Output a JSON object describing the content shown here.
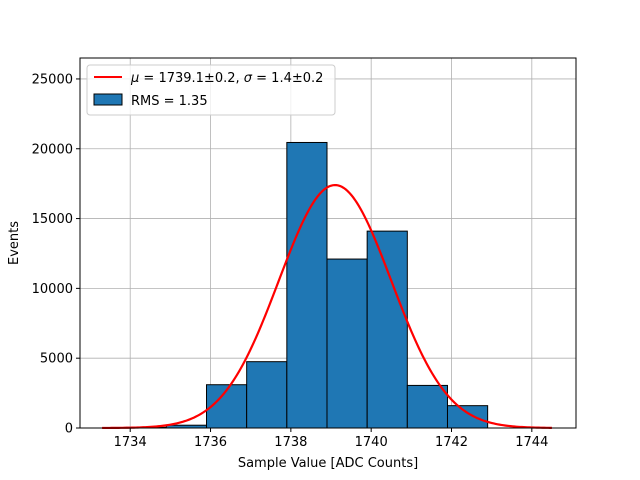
{
  "chart_data": {
    "type": "bar",
    "xlabel": "Sample Value [ADC Counts]",
    "ylabel": "Events",
    "xlim": [
      1732.75,
      1745.1
    ],
    "ylim": [
      0,
      26500
    ],
    "grid": true,
    "legend_position": "upper-left",
    "xticks": [
      1734,
      1736,
      1738,
      1740,
      1742,
      1744
    ],
    "yticks": [
      0,
      5000,
      10000,
      15000,
      20000,
      25000
    ],
    "histogram": {
      "name": "RMS = 1.35",
      "color": "#1f77b4",
      "edgecolor": "#000000",
      "bins": [
        {
          "x0": 1733.9,
          "x1": 1734.9,
          "value": 50
        },
        {
          "x0": 1734.9,
          "x1": 1735.9,
          "value": 200
        },
        {
          "x0": 1735.9,
          "x1": 1736.9,
          "value": 3100
        },
        {
          "x0": 1736.9,
          "x1": 1737.9,
          "value": 4750
        },
        {
          "x0": 1737.9,
          "x1": 1738.9,
          "value": 20450
        },
        {
          "x0": 1738.9,
          "x1": 1739.9,
          "value": 12100
        },
        {
          "x0": 1739.9,
          "x1": 1740.9,
          "value": 14100
        },
        {
          "x0": 1740.9,
          "x1": 1741.9,
          "value": 3050
        },
        {
          "x0": 1741.9,
          "x1": 1742.9,
          "value": 1600
        }
      ]
    },
    "fit": {
      "name": "μ = 1739.1±0.2, σ = 1.4±0.2",
      "legend_label_parts": {
        "mu_symbol": "μ",
        "mu_text": " = 1739.1±0.2, ",
        "sigma_symbol": "σ",
        "sigma_text": " = 1.4±0.2"
      },
      "type": "gaussian",
      "mean": 1739.1,
      "sigma": 1.4,
      "amplitude": 17400,
      "x_range": [
        1733.3,
        1744.5
      ],
      "color": "#ff0000"
    }
  }
}
